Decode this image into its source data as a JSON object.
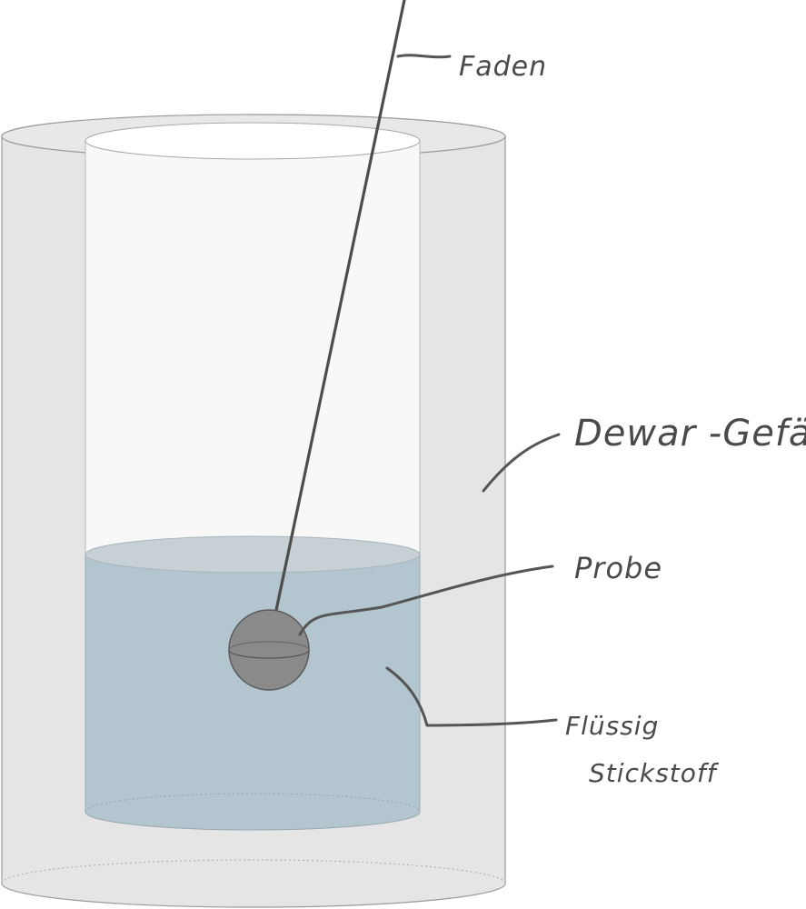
{
  "diagram": {
    "labels": {
      "faden": "Faden",
      "dewar": "Dewar -Gefäß",
      "probe": "Probe",
      "fluid_line1": "Flüssig",
      "fluid_line2": "Stickstoff"
    },
    "colors": {
      "dewar_fill": "#e5e5e5",
      "dewar_stroke": "#9a9a9a",
      "inner_fill": "#f8f8f8",
      "liquid": "#b3c6d0",
      "liquid_surface": "#c7d0d4",
      "sample": "#8a8a8a",
      "thread": "#4d4d4d",
      "text": "#4a4a4a"
    }
  }
}
